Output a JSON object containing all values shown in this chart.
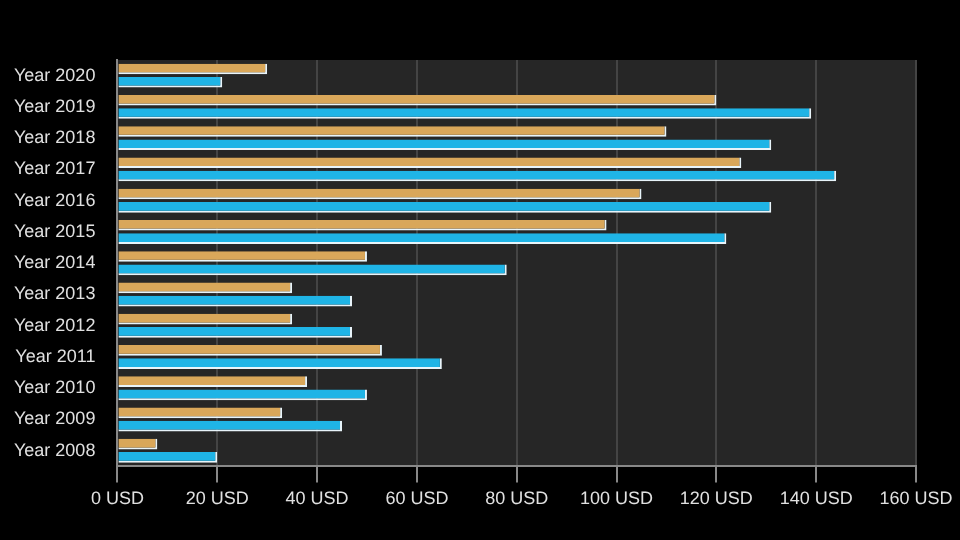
{
  "chart_data": {
    "type": "bar",
    "orientation": "horizontal",
    "categories": [
      "Year 2020",
      "Year 2019",
      "Year 2018",
      "Year 2017",
      "Year 2016",
      "Year 2015",
      "Year 2014",
      "Year 2013",
      "Year 2012",
      "Year 2011",
      "Year 2010",
      "Year 2009",
      "Year 2008"
    ],
    "series": [
      {
        "color": "#d9a75a",
        "values": [
          30,
          120,
          110,
          125,
          105,
          98,
          50,
          35,
          35,
          53,
          38,
          33,
          8
        ]
      },
      {
        "color": "#1fb4e6",
        "values": [
          21,
          139,
          131,
          144,
          131,
          122,
          78,
          47,
          47,
          65,
          50,
          45,
          20
        ]
      }
    ],
    "xlim": [
      0,
      160
    ],
    "xticks": [
      {
        "value": 0,
        "label": "0 USD"
      },
      {
        "value": 20,
        "label": "20 USD"
      },
      {
        "value": 40,
        "label": "40 USD"
      },
      {
        "value": 60,
        "label": "60 USD"
      },
      {
        "value": 80,
        "label": "80 USD"
      },
      {
        "value": 100,
        "label": "100 USD"
      },
      {
        "value": 120,
        "label": "120 USD"
      },
      {
        "value": 140,
        "label": "140 USD"
      },
      {
        "value": 160,
        "label": "160 USD"
      }
    ],
    "grid": "x"
  }
}
